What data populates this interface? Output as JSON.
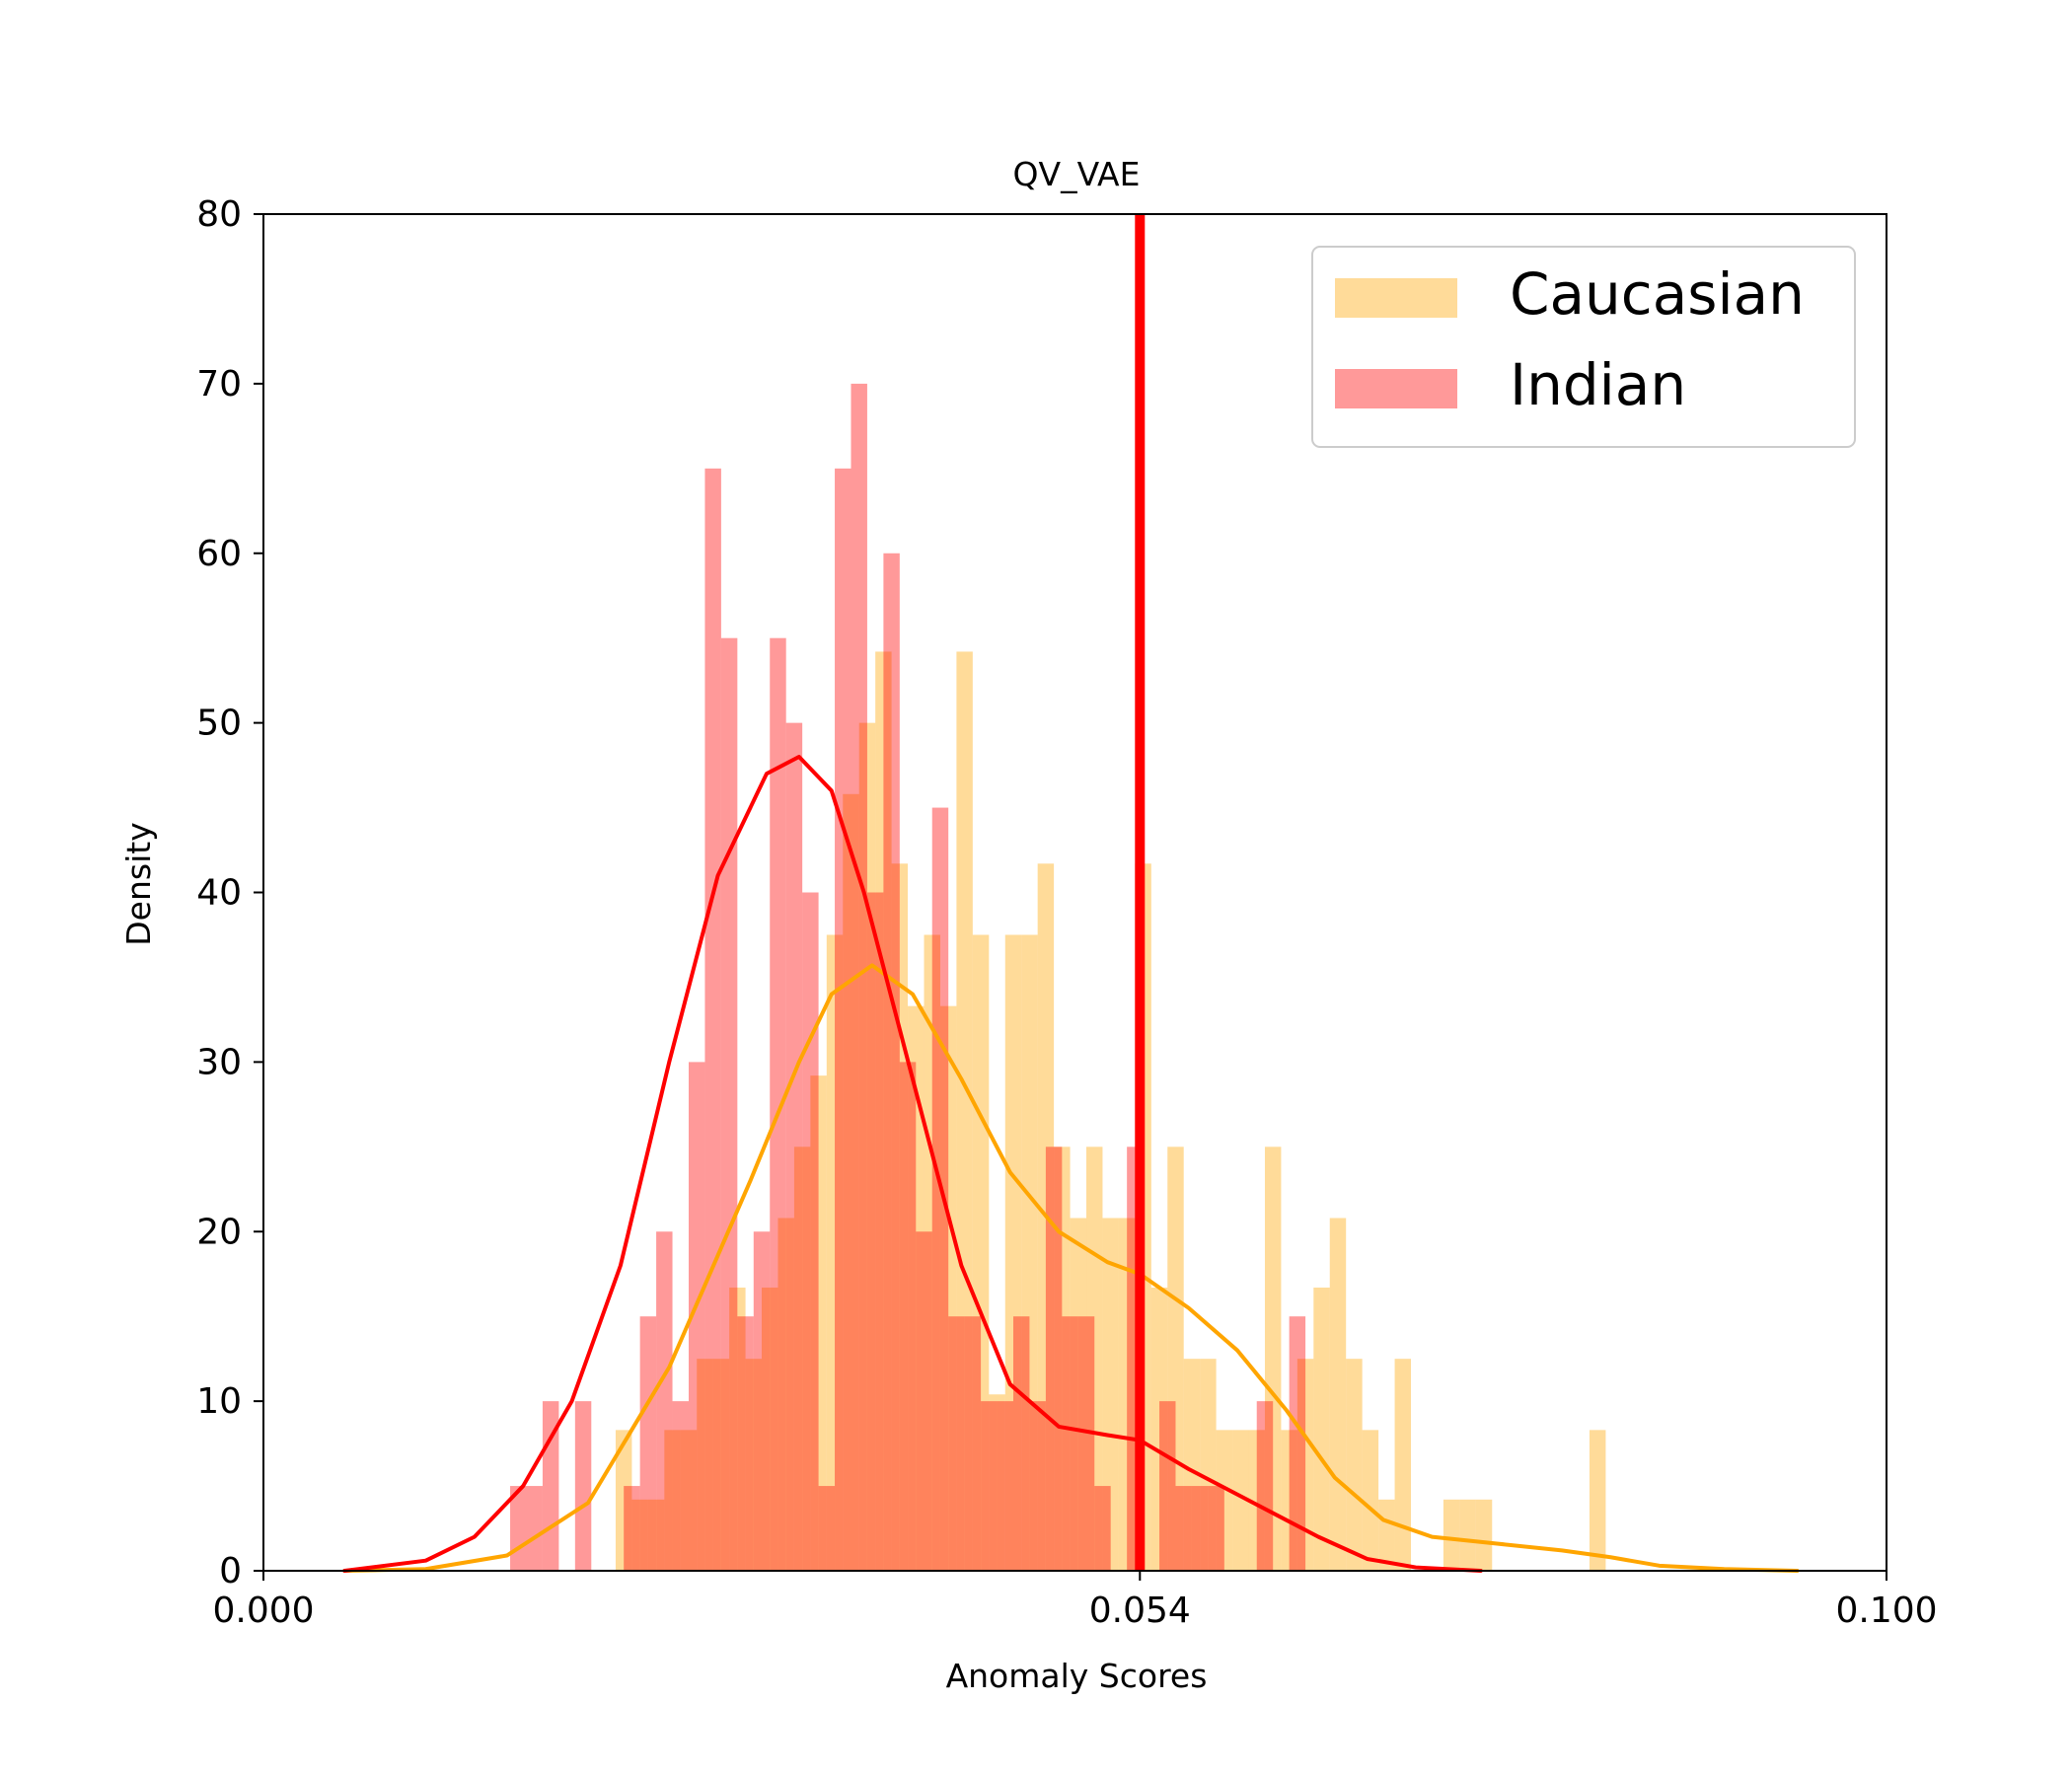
{
  "chart_data": {
    "type": "histogram",
    "title": "QV_VAE",
    "xlabel": "Anomaly Scores",
    "ylabel": "Density",
    "xlim": [
      0.0,
      0.1
    ],
    "ylim": [
      0,
      80
    ],
    "xticks": [
      0.0,
      0.054,
      0.1
    ],
    "xtick_labels": [
      "0.000",
      "0.054",
      "0.100"
    ],
    "yticks": [
      0,
      10,
      20,
      30,
      40,
      50,
      60,
      70,
      80
    ],
    "ytick_labels": [
      "0",
      "10",
      "20",
      "30",
      "40",
      "50",
      "60",
      "70",
      "80"
    ],
    "threshold": {
      "x": 0.054,
      "color": "#ff0000"
    },
    "legend_position": "top-right",
    "series": [
      {
        "name": "Caucasian",
        "bar_color": "#ffa500",
        "bar_opacity": 0.4,
        "kde_color": "#ffa500",
        "bin_width": 0.001,
        "bins": [
          [
            0.0217,
            8.3
          ],
          [
            0.0227,
            4.2
          ],
          [
            0.0237,
            4.2
          ],
          [
            0.0247,
            8.3
          ],
          [
            0.0257,
            8.3
          ],
          [
            0.0267,
            12.5
          ],
          [
            0.0277,
            12.5
          ],
          [
            0.0287,
            16.7
          ],
          [
            0.0297,
            12.5
          ],
          [
            0.0307,
            16.7
          ],
          [
            0.0317,
            20.8
          ],
          [
            0.0327,
            25.0
          ],
          [
            0.0337,
            29.2
          ],
          [
            0.0347,
            37.5
          ],
          [
            0.0357,
            45.8
          ],
          [
            0.0367,
            50.0
          ],
          [
            0.0377,
            54.2
          ],
          [
            0.0387,
            41.7
          ],
          [
            0.0397,
            33.3
          ],
          [
            0.0407,
            37.5
          ],
          [
            0.0417,
            33.3
          ],
          [
            0.0427,
            54.2
          ],
          [
            0.0437,
            37.5
          ],
          [
            0.0447,
            10.4
          ],
          [
            0.0457,
            37.5
          ],
          [
            0.0467,
            37.5
          ],
          [
            0.0477,
            41.7
          ],
          [
            0.0487,
            25.0
          ],
          [
            0.0497,
            20.8
          ],
          [
            0.0507,
            25.0
          ],
          [
            0.0517,
            20.8
          ],
          [
            0.0527,
            20.8
          ],
          [
            0.0537,
            41.7
          ],
          [
            0.0547,
            16.7
          ],
          [
            0.0557,
            25.0
          ],
          [
            0.0567,
            12.5
          ],
          [
            0.0577,
            12.5
          ],
          [
            0.0587,
            8.3
          ],
          [
            0.0597,
            8.3
          ],
          [
            0.0607,
            8.3
          ],
          [
            0.0617,
            25.0
          ],
          [
            0.0627,
            8.3
          ],
          [
            0.0637,
            12.5
          ],
          [
            0.0647,
            16.7
          ],
          [
            0.0657,
            20.8
          ],
          [
            0.0667,
            12.5
          ],
          [
            0.0677,
            8.3
          ],
          [
            0.0687,
            4.2
          ],
          [
            0.0697,
            12.5
          ],
          [
            0.0727,
            4.2
          ],
          [
            0.0737,
            4.2
          ],
          [
            0.0747,
            4.2
          ],
          [
            0.0817,
            8.3
          ]
        ],
        "kde": [
          [
            0.005,
            0.0
          ],
          [
            0.01,
            0.1
          ],
          [
            0.015,
            0.9
          ],
          [
            0.02,
            4.0
          ],
          [
            0.025,
            12.0
          ],
          [
            0.03,
            23.0
          ],
          [
            0.033,
            30.0
          ],
          [
            0.035,
            34.0
          ],
          [
            0.0375,
            35.7
          ],
          [
            0.04,
            34.0
          ],
          [
            0.043,
            29.0
          ],
          [
            0.046,
            23.5
          ],
          [
            0.049,
            20.0
          ],
          [
            0.052,
            18.2
          ],
          [
            0.054,
            17.5
          ],
          [
            0.057,
            15.5
          ],
          [
            0.06,
            13.0
          ],
          [
            0.063,
            9.5
          ],
          [
            0.066,
            5.5
          ],
          [
            0.069,
            3.0
          ],
          [
            0.072,
            2.0
          ],
          [
            0.076,
            1.6
          ],
          [
            0.08,
            1.2
          ],
          [
            0.083,
            0.8
          ],
          [
            0.086,
            0.3
          ],
          [
            0.09,
            0.1
          ],
          [
            0.0945,
            0.0
          ]
        ]
      },
      {
        "name": "Indian",
        "bar_color": "#ff0000",
        "bar_opacity": 0.4,
        "kde_color": "#ff0000",
        "bin_width": 0.001,
        "bins": [
          [
            0.0152,
            5.0
          ],
          [
            0.0162,
            5.0
          ],
          [
            0.0172,
            10.0
          ],
          [
            0.0192,
            10.0
          ],
          [
            0.0222,
            5.0
          ],
          [
            0.0232,
            15.0
          ],
          [
            0.0242,
            20.0
          ],
          [
            0.0252,
            10.0
          ],
          [
            0.0262,
            30.0
          ],
          [
            0.0272,
            65.0
          ],
          [
            0.0282,
            55.0
          ],
          [
            0.0292,
            15.0
          ],
          [
            0.0302,
            20.0
          ],
          [
            0.0312,
            55.0
          ],
          [
            0.0322,
            50.0
          ],
          [
            0.0332,
            40.0
          ],
          [
            0.0342,
            5.0
          ],
          [
            0.0352,
            65.0
          ],
          [
            0.0362,
            70.0
          ],
          [
            0.0372,
            40.0
          ],
          [
            0.0382,
            60.0
          ],
          [
            0.0392,
            30.0
          ],
          [
            0.0402,
            20.0
          ],
          [
            0.0412,
            45.0
          ],
          [
            0.0422,
            15.0
          ],
          [
            0.0432,
            15.0
          ],
          [
            0.0442,
            10.0
          ],
          [
            0.0452,
            10.0
          ],
          [
            0.0462,
            15.0
          ],
          [
            0.0472,
            10.0
          ],
          [
            0.0482,
            25.0
          ],
          [
            0.0492,
            15.0
          ],
          [
            0.0502,
            15.0
          ],
          [
            0.0512,
            5.0
          ],
          [
            0.0532,
            25.0
          ],
          [
            0.0552,
            10.0
          ],
          [
            0.0562,
            5.0
          ],
          [
            0.0572,
            5.0
          ],
          [
            0.0582,
            5.0
          ],
          [
            0.0612,
            10.0
          ],
          [
            0.0632,
            15.0
          ]
        ],
        "kde": [
          [
            0.005,
            0.0
          ],
          [
            0.01,
            0.6
          ],
          [
            0.013,
            2.0
          ],
          [
            0.016,
            5.0
          ],
          [
            0.019,
            10.0
          ],
          [
            0.022,
            18.0
          ],
          [
            0.025,
            30.0
          ],
          [
            0.028,
            41.0
          ],
          [
            0.031,
            47.0
          ],
          [
            0.033,
            48.0
          ],
          [
            0.035,
            46.0
          ],
          [
            0.037,
            40.0
          ],
          [
            0.04,
            29.0
          ],
          [
            0.043,
            18.0
          ],
          [
            0.046,
            11.0
          ],
          [
            0.049,
            8.5
          ],
          [
            0.052,
            8.0
          ],
          [
            0.054,
            7.7
          ],
          [
            0.057,
            6.0
          ],
          [
            0.06,
            4.5
          ],
          [
            0.063,
            3.0
          ],
          [
            0.065,
            2.0
          ],
          [
            0.068,
            0.7
          ],
          [
            0.071,
            0.2
          ],
          [
            0.075,
            0.0
          ]
        ]
      }
    ]
  }
}
